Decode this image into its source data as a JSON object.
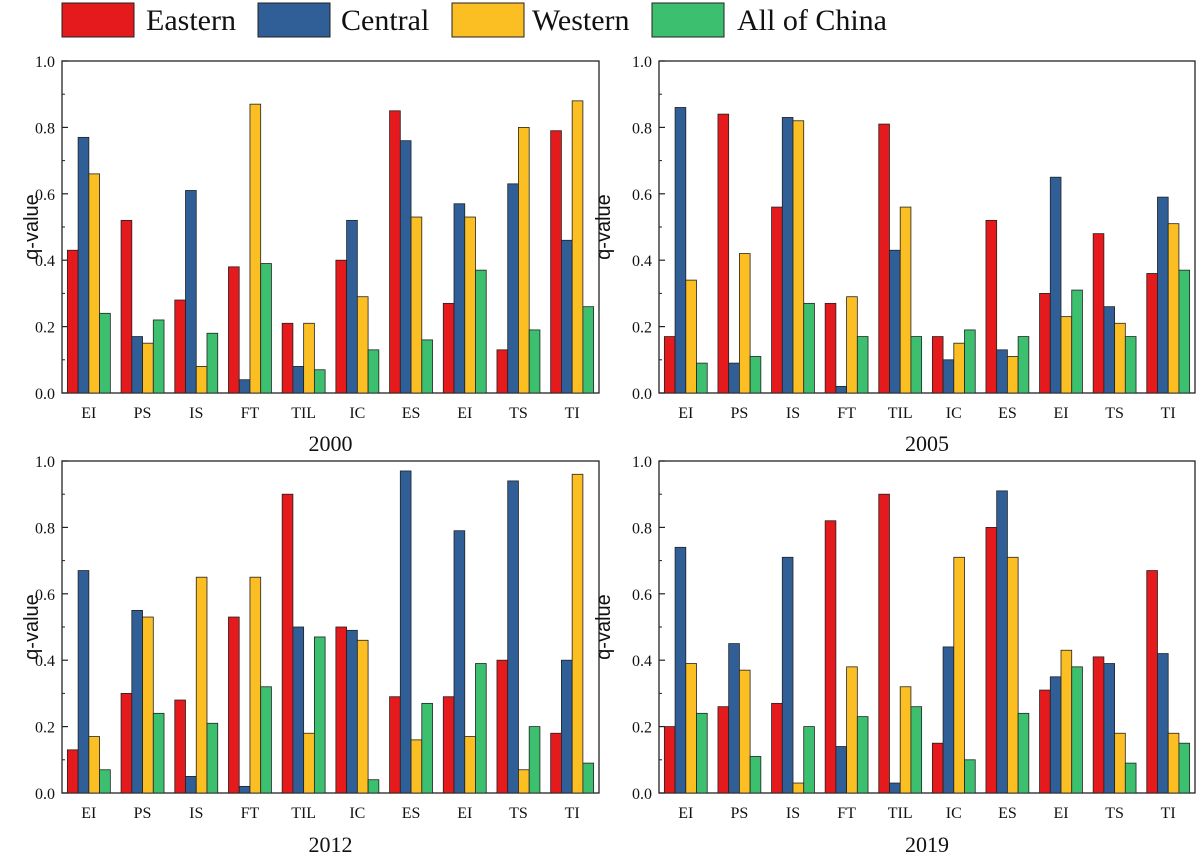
{
  "legend": [
    {
      "name": "Eastern",
      "color": "#e41a1c"
    },
    {
      "name": "Central",
      "color": "#2f5f96"
    },
    {
      "name": "Western",
      "color": "#fbbf24"
    },
    {
      "name": "All of China",
      "color": "#3cbf6e"
    }
  ],
  "chart_data": [
    {
      "type": "bar",
      "title": "2000",
      "ylabel": "q-value",
      "ylim": [
        0,
        1.0
      ],
      "yticks": [
        "0.0",
        "0.2",
        "0.4",
        "0.6",
        "0.8",
        "1.0"
      ],
      "categories": [
        "EI",
        "PS",
        "IS",
        "FT",
        "TIL",
        "IC",
        "ES",
        "EI",
        "TS",
        "TI"
      ],
      "series": [
        {
          "name": "Eastern",
          "values": [
            0.43,
            0.52,
            0.28,
            0.38,
            0.21,
            0.4,
            0.85,
            0.27,
            0.13,
            0.79
          ]
        },
        {
          "name": "Central",
          "values": [
            0.77,
            0.17,
            0.61,
            0.04,
            0.08,
            0.52,
            0.76,
            0.57,
            0.63,
            0.46
          ]
        },
        {
          "name": "Western",
          "values": [
            0.66,
            0.15,
            0.08,
            0.87,
            0.21,
            0.29,
            0.53,
            0.53,
            0.8,
            0.88
          ]
        },
        {
          "name": "All of China",
          "values": [
            0.24,
            0.22,
            0.18,
            0.39,
            0.07,
            0.13,
            0.16,
            0.37,
            0.19,
            0.26
          ]
        }
      ]
    },
    {
      "type": "bar",
      "title": "2005",
      "ylabel": "q-value",
      "ylim": [
        0,
        1.0
      ],
      "yticks": [
        "0.0",
        "0.2",
        "0.4",
        "0.6",
        "0.8",
        "1.0"
      ],
      "categories": [
        "EI",
        "PS",
        "IS",
        "FT",
        "TIL",
        "IC",
        "ES",
        "EI",
        "TS",
        "TI"
      ],
      "series": [
        {
          "name": "Eastern",
          "values": [
            0.17,
            0.84,
            0.56,
            0.27,
            0.81,
            0.17,
            0.52,
            0.3,
            0.48,
            0.36
          ]
        },
        {
          "name": "Central",
          "values": [
            0.86,
            0.09,
            0.83,
            0.02,
            0.43,
            0.1,
            0.13,
            0.65,
            0.26,
            0.59
          ]
        },
        {
          "name": "Western",
          "values": [
            0.34,
            0.42,
            0.82,
            0.29,
            0.56,
            0.15,
            0.11,
            0.23,
            0.21,
            0.51
          ]
        },
        {
          "name": "All of China",
          "values": [
            0.09,
            0.11,
            0.27,
            0.17,
            0.17,
            0.19,
            0.17,
            0.31,
            0.17,
            0.37
          ]
        }
      ]
    },
    {
      "type": "bar",
      "title": "2012",
      "ylabel": "q-value",
      "ylim": [
        0,
        1.0
      ],
      "yticks": [
        "0.0",
        "0.2",
        "0.4",
        "0.6",
        "0.8",
        "1.0"
      ],
      "categories": [
        "EI",
        "PS",
        "IS",
        "FT",
        "TIL",
        "IC",
        "ES",
        "EI",
        "TS",
        "TI"
      ],
      "series": [
        {
          "name": "Eastern",
          "values": [
            0.13,
            0.3,
            0.28,
            0.53,
            0.9,
            0.5,
            0.29,
            0.29,
            0.4,
            0.18
          ]
        },
        {
          "name": "Central",
          "values": [
            0.67,
            0.55,
            0.05,
            0.02,
            0.5,
            0.49,
            0.97,
            0.79,
            0.94,
            0.4
          ]
        },
        {
          "name": "Western",
          "values": [
            0.17,
            0.53,
            0.65,
            0.65,
            0.18,
            0.46,
            0.16,
            0.17,
            0.07,
            0.96
          ]
        },
        {
          "name": "All of China",
          "values": [
            0.07,
            0.24,
            0.21,
            0.32,
            0.47,
            0.04,
            0.27,
            0.39,
            0.2,
            0.09
          ]
        }
      ]
    },
    {
      "type": "bar",
      "title": "2019",
      "ylabel": "q-value",
      "ylim": [
        0,
        1.0
      ],
      "yticks": [
        "0.0",
        "0.2",
        "0.4",
        "0.6",
        "0.8",
        "1.0"
      ],
      "categories": [
        "EI",
        "PS",
        "IS",
        "FT",
        "TIL",
        "IC",
        "ES",
        "EI",
        "TS",
        "TI"
      ],
      "series": [
        {
          "name": "Eastern",
          "values": [
            0.2,
            0.26,
            0.27,
            0.82,
            0.9,
            0.15,
            0.8,
            0.31,
            0.41,
            0.67
          ]
        },
        {
          "name": "Central",
          "values": [
            0.74,
            0.45,
            0.71,
            0.14,
            0.03,
            0.44,
            0.91,
            0.35,
            0.39,
            0.42
          ]
        },
        {
          "name": "Western",
          "values": [
            0.39,
            0.37,
            0.03,
            0.38,
            0.32,
            0.71,
            0.71,
            0.43,
            0.18,
            0.18
          ]
        },
        {
          "name": "All of China",
          "values": [
            0.24,
            0.11,
            0.2,
            0.23,
            0.26,
            0.1,
            0.24,
            0.38,
            0.09,
            0.15
          ]
        }
      ]
    }
  ]
}
